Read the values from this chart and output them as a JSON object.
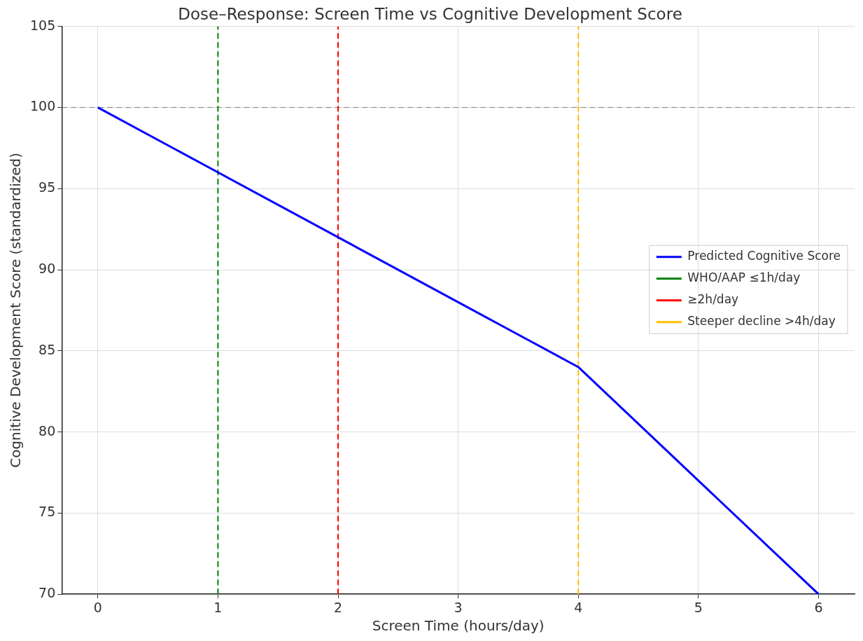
{
  "chart_data": {
    "type": "line",
    "title": "Dose–Response: Screen Time vs Cognitive Development Score",
    "xlabel": "Screen Time (hours/day)",
    "ylabel": "Cognitive Development Score (standardized)",
    "x": [
      0,
      1,
      2,
      3,
      4,
      5,
      6
    ],
    "series": [
      {
        "name": "Predicted Cognitive Score",
        "color": "#0000ff",
        "values": [
          100,
          96,
          92,
          88,
          84,
          77,
          70
        ]
      },
      {
        "name": "WHO/AAP ≤1h/day",
        "color": "#008000",
        "x": [
          1,
          1
        ],
        "values": [
          70,
          105
        ],
        "line_style": "dashed"
      },
      {
        "name": "≥2h/day",
        "color": "#ff0000",
        "x": [
          2,
          2
        ],
        "values": [
          70,
          105
        ],
        "line_style": "dashed"
      },
      {
        "name": "Steeper decline >4h/day",
        "color": "#ffbf00",
        "x": [
          4,
          4
        ],
        "values": [
          70,
          105
        ],
        "line_style": "dashed"
      }
    ],
    "ref_lines": [
      {
        "axis": "y",
        "value": 100,
        "color": "#808080",
        "line_style": "dashed"
      }
    ],
    "xlim": [
      -0.3,
      6.3
    ],
    "xticks": [
      0,
      1,
      2,
      3,
      4,
      5,
      6
    ],
    "ylim": [
      70,
      105
    ],
    "yticks": [
      70,
      75,
      80,
      85,
      90,
      95,
      100,
      105
    ],
    "grid": true,
    "legend": "right",
    "marker": "none",
    "line_style": "solid"
  }
}
